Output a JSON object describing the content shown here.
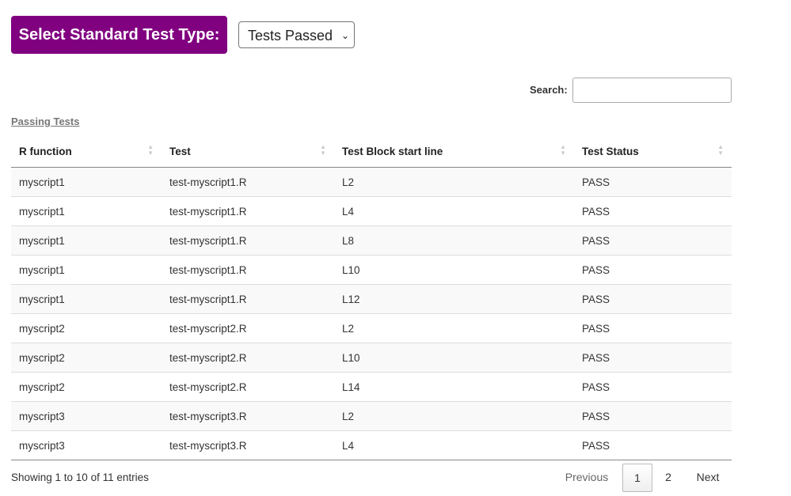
{
  "header": {
    "label": "Select Standard Test Type:",
    "select_value": "Tests Passed"
  },
  "search": {
    "label": "Search:",
    "value": ""
  },
  "caption": "Passing Tests",
  "columns": [
    "R function",
    "Test",
    "Test Block start line",
    "Test Status"
  ],
  "rows": [
    [
      "myscript1",
      "test-myscript1.R",
      "L2",
      "PASS"
    ],
    [
      "myscript1",
      "test-myscript1.R",
      "L4",
      "PASS"
    ],
    [
      "myscript1",
      "test-myscript1.R",
      "L8",
      "PASS"
    ],
    [
      "myscript1",
      "test-myscript1.R",
      "L10",
      "PASS"
    ],
    [
      "myscript1",
      "test-myscript1.R",
      "L12",
      "PASS"
    ],
    [
      "myscript2",
      "test-myscript2.R",
      "L2",
      "PASS"
    ],
    [
      "myscript2",
      "test-myscript2.R",
      "L10",
      "PASS"
    ],
    [
      "myscript2",
      "test-myscript2.R",
      "L14",
      "PASS"
    ],
    [
      "myscript3",
      "test-myscript3.R",
      "L2",
      "PASS"
    ],
    [
      "myscript3",
      "test-myscript3.R",
      "L4",
      "PASS"
    ]
  ],
  "info": "Showing 1 to 10 of 11 entries",
  "pagination": {
    "previous": "Previous",
    "pages": [
      "1",
      "2"
    ],
    "next": "Next",
    "current": "1"
  },
  "colors": {
    "accent": "#800080"
  }
}
